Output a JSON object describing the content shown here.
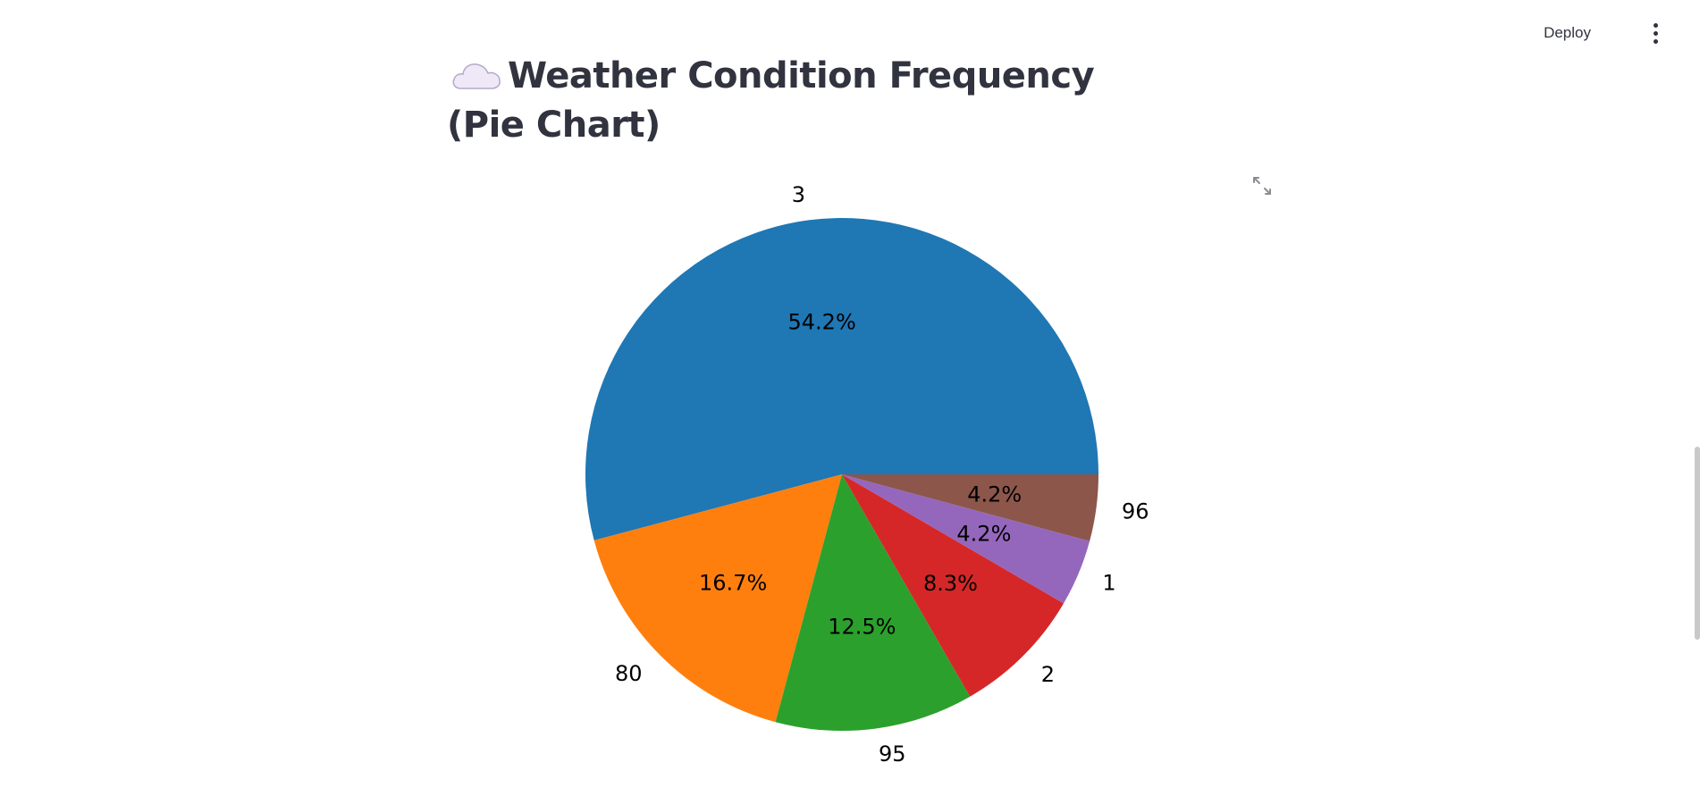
{
  "toolbar": {
    "deploy_label": "Deploy",
    "menu_icon": "vertical-dots-icon"
  },
  "header": {
    "title": "Weather Condition Frequency (Pie Chart)",
    "title_icon": "cloud-icon"
  },
  "expand_icon": "expand-icon",
  "colors": {
    "text": "#31333f",
    "series": [
      "#1f77b4",
      "#ff7f0e",
      "#2ca02c",
      "#d62728",
      "#9467bd",
      "#8c564b"
    ]
  },
  "chart_data": {
    "type": "pie",
    "title": "",
    "start_angle_deg": 0,
    "direction": "counterclockwise",
    "categories": [
      "3",
      "80",
      "95",
      "2",
      "1",
      "96"
    ],
    "values": [
      54.2,
      16.7,
      12.5,
      8.3,
      4.2,
      4.2
    ],
    "value_labels": [
      "54.2%",
      "16.7%",
      "12.5%",
      "8.3%",
      "4.2%",
      "4.2%"
    ],
    "legend": "none"
  }
}
